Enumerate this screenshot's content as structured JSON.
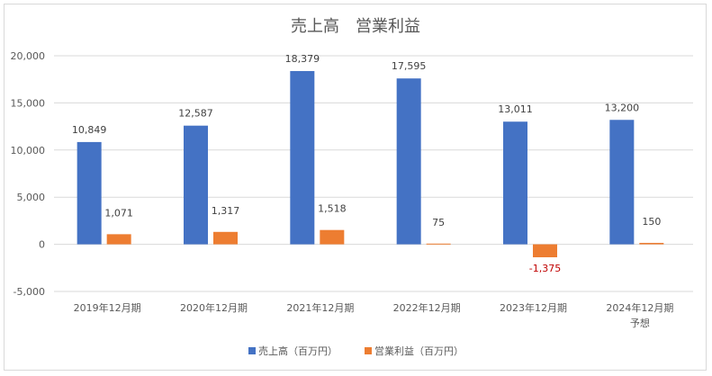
{
  "chart_data": {
    "type": "bar",
    "title": "売上高　営業利益",
    "categories": [
      [
        "2019年12月期"
      ],
      [
        "2020年12月期"
      ],
      [
        "2021年12月期"
      ],
      [
        "2022年12月期"
      ],
      [
        "2023年12月期"
      ],
      [
        "2024年12月期",
        "予想"
      ]
    ],
    "series": [
      {
        "name": "売上高（百万円）",
        "color": "#4472c4",
        "values": [
          10849,
          12587,
          18379,
          17595,
          13011,
          13200
        ],
        "labels": [
          "10,849",
          "12,587",
          "18,379",
          "17,595",
          "13,011",
          "13,200"
        ]
      },
      {
        "name": "営業利益（百万円）",
        "color": "#ed7d31",
        "values": [
          1071,
          1317,
          1518,
          75,
          -1375,
          150
        ],
        "labels": [
          "1,071",
          "1,317",
          "1,518",
          "75",
          "-1,375",
          "150"
        ]
      }
    ],
    "ylim": [
      -5000,
      20000
    ],
    "yticks": [
      -5000,
      0,
      5000,
      10000,
      15000,
      20000
    ],
    "ytick_labels": [
      "-5,000",
      "0",
      "5,000",
      "10,000",
      "15,000",
      "20,000"
    ],
    "negative_label_color": "#c00000",
    "grid": true,
    "legend_position": "bottom"
  }
}
